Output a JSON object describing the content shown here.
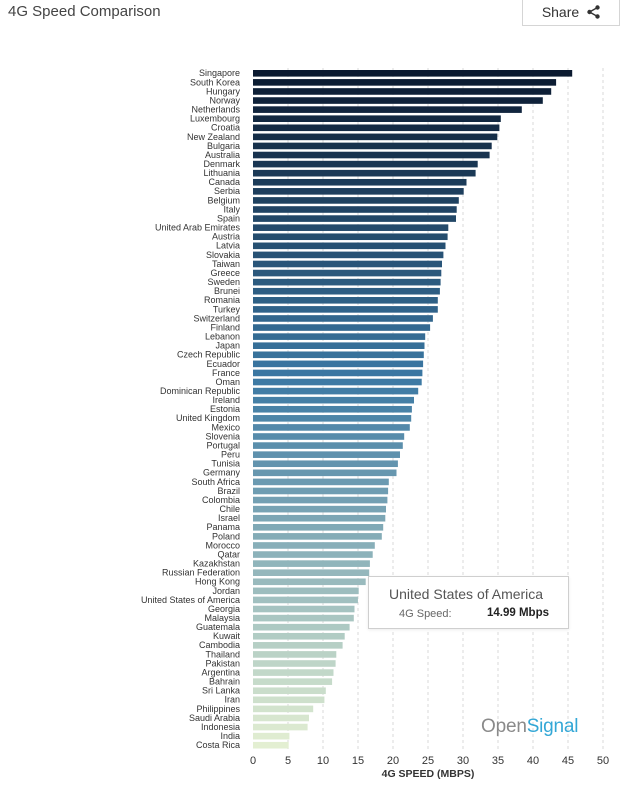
{
  "header": {
    "title": "4G Speed Comparison",
    "share_label": "Share"
  },
  "tooltip": {
    "country": "United States of America",
    "metric_label": "4G Speed:",
    "value_text": "14.99 Mbps"
  },
  "logo": {
    "part1": "Open",
    "part2": "Signal"
  },
  "colors": {
    "bar_dark": "#0b1a30",
    "bar_mid": "#3b78a3",
    "bar_light": "#e3efd2",
    "grid": "#d9d9d9",
    "logo_accent": "#33a7d6"
  },
  "chart_data": {
    "type": "bar",
    "orientation": "horizontal",
    "xlabel": "4G SPEED (MBPS)",
    "xlim": [
      0,
      50
    ],
    "xticks": [
      0,
      5,
      10,
      15,
      20,
      25,
      30,
      35,
      40,
      45,
      50
    ],
    "grid": "vertical dashed",
    "categories": [
      "Singapore",
      "South Korea",
      "Hungary",
      "Norway",
      "Netherlands",
      "Luxembourg",
      "Croatia",
      "New Zealand",
      "Bulgaria",
      "Australia",
      "Denmark",
      "Lithuania",
      "Canada",
      "Serbia",
      "Belgium",
      "Italy",
      "Spain",
      "United Arab Emirates",
      "Austria",
      "Latvia",
      "Slovakia",
      "Taiwan",
      "Greece",
      "Sweden",
      "Brunei",
      "Romania",
      "Turkey",
      "Switzerland",
      "Finland",
      "Lebanon",
      "Japan",
      "Czech Republic",
      "Ecuador",
      "France",
      "Oman",
      "Dominican Republic",
      "Ireland",
      "Estonia",
      "United Kingdom",
      "Mexico",
      "Slovenia",
      "Portugal",
      "Peru",
      "Tunisia",
      "Germany",
      "South Africa",
      "Brazil",
      "Colombia",
      "Chile",
      "Israel",
      "Panama",
      "Poland",
      "Morocco",
      "Qatar",
      "Kazakhstan",
      "Russian Federation",
      "Hong Kong",
      "Jordan",
      "United States of America",
      "Georgia",
      "Malaysia",
      "Guatemala",
      "Kuwait",
      "Cambodia",
      "Thailand",
      "Pakistan",
      "Argentina",
      "Bahrain",
      "Sri Lanka",
      "Iran",
      "Philippines",
      "Saudi Arabia",
      "Indonesia",
      "India",
      "Costa Rica"
    ],
    "values": [
      45.6,
      43.3,
      42.6,
      41.4,
      38.4,
      35.4,
      35.2,
      34.9,
      34.1,
      33.8,
      32.1,
      31.8,
      30.5,
      30.1,
      29.4,
      29.1,
      29.0,
      27.9,
      27.8,
      27.5,
      27.2,
      27.0,
      26.9,
      26.8,
      26.7,
      26.4,
      26.4,
      25.7,
      25.3,
      24.6,
      24.5,
      24.4,
      24.3,
      24.2,
      24.1,
      23.6,
      23.0,
      22.7,
      22.6,
      22.4,
      21.6,
      21.4,
      21.0,
      20.7,
      20.5,
      19.4,
      19.3,
      19.2,
      19.0,
      18.9,
      18.6,
      18.4,
      17.4,
      17.1,
      16.7,
      16.6,
      16.1,
      15.1,
      14.99,
      14.5,
      14.4,
      13.8,
      13.1,
      12.8,
      11.9,
      11.8,
      11.5,
      11.3,
      10.4,
      10.2,
      8.6,
      8.0,
      7.8,
      5.2,
      5.1
    ]
  }
}
